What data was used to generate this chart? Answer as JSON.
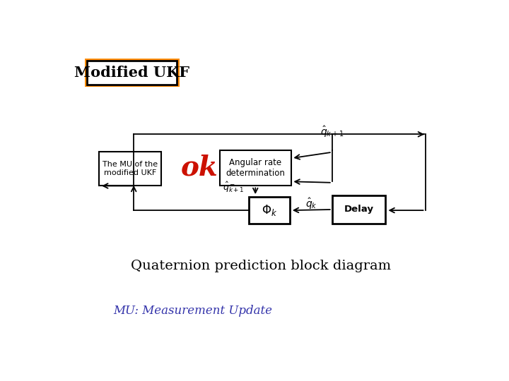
{
  "bg_color": "#ffffff",
  "title_text": "Modified UKF",
  "title_box_color": "#FF8C00",
  "subtitle": "Quaternion prediction block diagram",
  "subtitle_color": "#000000",
  "subtitle_fontsize": 14,
  "footer": "MU: Measurement Update",
  "footer_color": "#3333aa",
  "footer_fontsize": 12,
  "ok_text": "ok",
  "ok_color": "#cc1100",
  "ok_fontsize": 28,
  "block_mu_text": "The MU of the\nmodified UKF",
  "block_angular_text": "Angular rate\ndetermination",
  "block_delay_text": "Delay",
  "arrow_color": "#000000",
  "line_color": "#000000",
  "lw": 1.3,
  "block_lw": 1.5,
  "delay_lw": 2.0,
  "phi_lw": 2.0
}
